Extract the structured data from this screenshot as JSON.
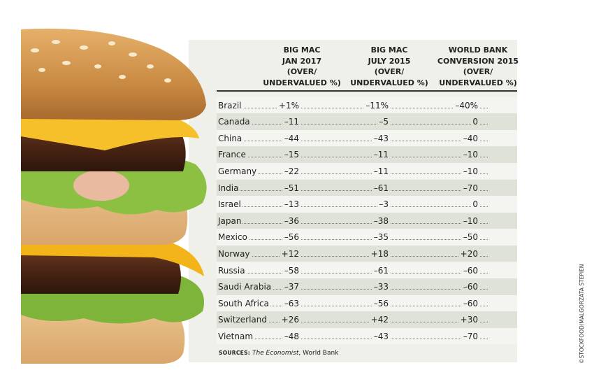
{
  "table": {
    "columns": [
      [
        "BIG MAC",
        "JAN 2017",
        "(OVER/",
        "UNDERVALUED %)"
      ],
      [
        "BIG MAC",
        "JULY 2015",
        "(OVER/",
        "UNDERVALUED %)"
      ],
      [
        "WORLD BANK",
        "CONVERSION 2015",
        "(OVER/",
        "UNDERVALUED %)"
      ]
    ],
    "rows": [
      [
        "Brazil",
        "+1%",
        "–11%",
        "–40%"
      ],
      [
        "Canada",
        "–11",
        "–5",
        "0"
      ],
      [
        "China",
        "–44",
        "–43",
        "–40"
      ],
      [
        "France",
        "–15",
        "–11",
        "–10"
      ],
      [
        "Germany",
        "–22",
        "–11",
        "–10"
      ],
      [
        "India",
        "–51",
        "–61",
        "–70"
      ],
      [
        "Israel",
        "–13",
        "–3",
        "0"
      ],
      [
        "Japan",
        "–36",
        "–38",
        "–10"
      ],
      [
        "Mexico",
        "–56",
        "–35",
        "–50"
      ],
      [
        "Norway",
        "+12",
        "+18",
        "+20"
      ],
      [
        "Russia",
        "–58",
        "–61",
        "–60"
      ],
      [
        "Saudi Arabia",
        "–37",
        "–33",
        "–60"
      ],
      [
        "South Africa",
        "–63",
        "–56",
        "–60"
      ],
      [
        "Switzerland",
        "+26",
        "+42",
        "+30"
      ],
      [
        "Vietnam",
        "–48",
        "–43",
        "–70"
      ]
    ]
  },
  "sources": {
    "label": "SOURCES:",
    "source1": "The Economist",
    "source2": ", World Bank"
  },
  "credit": "©STOCKFOOD/MALGORZATA STEPIEN"
}
